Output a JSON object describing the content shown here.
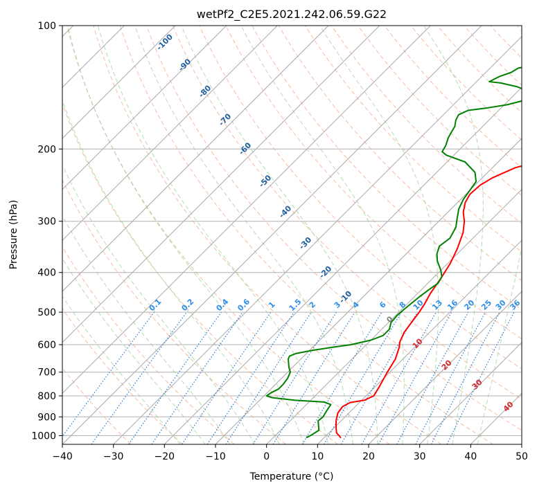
{
  "chart_data": {
    "type": "line",
    "title": "wetPf2_C2E5.2021.242.06.59.G22",
    "xlabel": "Temperature (°C)",
    "ylabel": "Pressure (hPa)",
    "xlim": [
      -40,
      50
    ],
    "ylim": [
      1050,
      100
    ],
    "yscale": "log",
    "grid": true,
    "xticks": [
      "−40",
      "−30",
      "−20",
      "−10",
      "0",
      "10",
      "20",
      "30",
      "40",
      "50"
    ],
    "yticks": [
      {
        "p": 100,
        "label": "100"
      },
      {
        "p": 200,
        "label": "200"
      },
      {
        "p": 300,
        "label": "300"
      },
      {
        "p": 400,
        "label": "400"
      },
      {
        "p": 500,
        "label": "500"
      },
      {
        "p": 600,
        "label": "600"
      },
      {
        "p": 700,
        "label": "700"
      },
      {
        "p": 800,
        "label": "800"
      },
      {
        "p": 900,
        "label": "900"
      },
      {
        "p": 1000,
        "label": "1000"
      }
    ],
    "series": [
      {
        "color": "#ff0000",
        "points": [
          [
            13.3,
            1013
          ],
          [
            12.5,
            1000
          ],
          [
            11.5,
            985
          ],
          [
            10.5,
            960
          ],
          [
            9,
            920
          ],
          [
            7.8,
            880
          ],
          [
            7.5,
            850
          ],
          [
            8.2,
            830
          ],
          [
            10.5,
            820
          ],
          [
            11.5,
            800
          ],
          [
            10.8,
            760
          ],
          [
            9.5,
            700
          ],
          [
            8.5,
            650
          ],
          [
            7,
            610
          ],
          [
            6,
            590
          ],
          [
            5,
            560
          ],
          [
            4.5,
            530
          ],
          [
            4,
            500
          ],
          [
            3.5,
            480
          ],
          [
            2.5,
            450
          ],
          [
            1.5,
            410
          ],
          [
            0.5,
            380
          ],
          [
            -1,
            350
          ],
          [
            -3,
            320
          ],
          [
            -5,
            300
          ],
          [
            -7,
            285
          ],
          [
            -8.5,
            270
          ],
          [
            -9.2,
            258
          ],
          [
            -9,
            245
          ],
          [
            -8,
            235
          ],
          [
            -5.5,
            222
          ],
          [
            -1.5,
            213
          ],
          [
            3.5,
            203
          ],
          [
            6.5,
            193
          ],
          [
            9.5,
            180
          ],
          [
            11.8,
            168
          ],
          [
            12.5,
            160
          ],
          [
            14,
            150
          ],
          [
            16,
            140
          ],
          [
            18.5,
            132
          ],
          [
            21.5,
            125
          ],
          [
            23,
            117
          ],
          [
            24.5,
            110
          ],
          [
            25.2,
            104
          ],
          [
            25.7,
            100
          ]
        ]
      },
      {
        "color": "#008000",
        "points": [
          [
            6.5,
            1012
          ],
          [
            7,
            995
          ],
          [
            7.5,
            970
          ],
          [
            6.5,
            945
          ],
          [
            5.5,
            920
          ],
          [
            5.7,
            900
          ],
          [
            5.2,
            870
          ],
          [
            4.8,
            840
          ],
          [
            3,
            828
          ],
          [
            -3,
            820
          ],
          [
            -8,
            808
          ],
          [
            -9.5,
            800
          ],
          [
            -9.2,
            785
          ],
          [
            -8.5,
            770
          ],
          [
            -8.5,
            750
          ],
          [
            -8.8,
            725
          ],
          [
            -9.5,
            700
          ],
          [
            -10.8,
            680
          ],
          [
            -12.5,
            650
          ],
          [
            -12.8,
            640
          ],
          [
            -12,
            630
          ],
          [
            -9.5,
            620
          ],
          [
            -6.5,
            610
          ],
          [
            -3,
            600
          ],
          [
            0,
            585
          ],
          [
            1.5,
            570
          ],
          [
            1.5,
            550
          ],
          [
            0.5,
            530
          ],
          [
            0.3,
            510
          ],
          [
            0.5,
            490
          ],
          [
            1,
            460
          ],
          [
            1.5,
            440
          ],
          [
            2,
            425
          ],
          [
            1.5,
            410
          ],
          [
            0,
            395
          ],
          [
            -2.5,
            375
          ],
          [
            -4,
            360
          ],
          [
            -5,
            345
          ],
          [
            -4.5,
            330
          ],
          [
            -5.5,
            310
          ],
          [
            -7,
            295
          ],
          [
            -8.5,
            280
          ],
          [
            -9.5,
            265
          ],
          [
            -10,
            252
          ],
          [
            -10.5,
            240
          ],
          [
            -12.5,
            228
          ],
          [
            -16.5,
            215
          ],
          [
            -21.5,
            207
          ],
          [
            -23,
            203
          ],
          [
            -23.5,
            196
          ],
          [
            -24.5,
            188
          ],
          [
            -25,
            182
          ],
          [
            -25.5,
            176
          ],
          [
            -26.5,
            170
          ],
          [
            -27,
            165
          ],
          [
            -26,
            161
          ],
          [
            -23,
            159
          ],
          [
            -19.5,
            156
          ],
          [
            -17.5,
            153
          ],
          [
            -16.5,
            150
          ],
          [
            -17.5,
            145
          ],
          [
            -21,
            141
          ],
          [
            -25,
            138
          ],
          [
            -27.5,
            137
          ],
          [
            -26.5,
            133
          ],
          [
            -25,
            130
          ],
          [
            -24.5,
            127
          ],
          [
            -22,
            125
          ],
          [
            -16,
            121
          ],
          [
            -11,
            117
          ],
          [
            -7,
            112
          ],
          [
            -3.5,
            106
          ],
          [
            -1.5,
            102
          ],
          [
            -0.5,
            100
          ]
        ]
      }
    ],
    "dry_adiabat_labels": [
      "-100",
      "-90",
      "-80",
      "-70",
      "-60",
      "-50",
      "-40",
      "-30",
      "-20",
      "-10"
    ],
    "moist_adiabat_labels": [
      "0",
      "10",
      "20",
      "30",
      "40"
    ],
    "mixing_ratio_labels": [
      "0.1",
      "0.2",
      "0.4",
      "0.6",
      "1",
      "1.5",
      "2",
      "3",
      "4",
      "6",
      "8",
      "10",
      "13",
      "16",
      "20",
      "25",
      "30",
      "36"
    ]
  }
}
